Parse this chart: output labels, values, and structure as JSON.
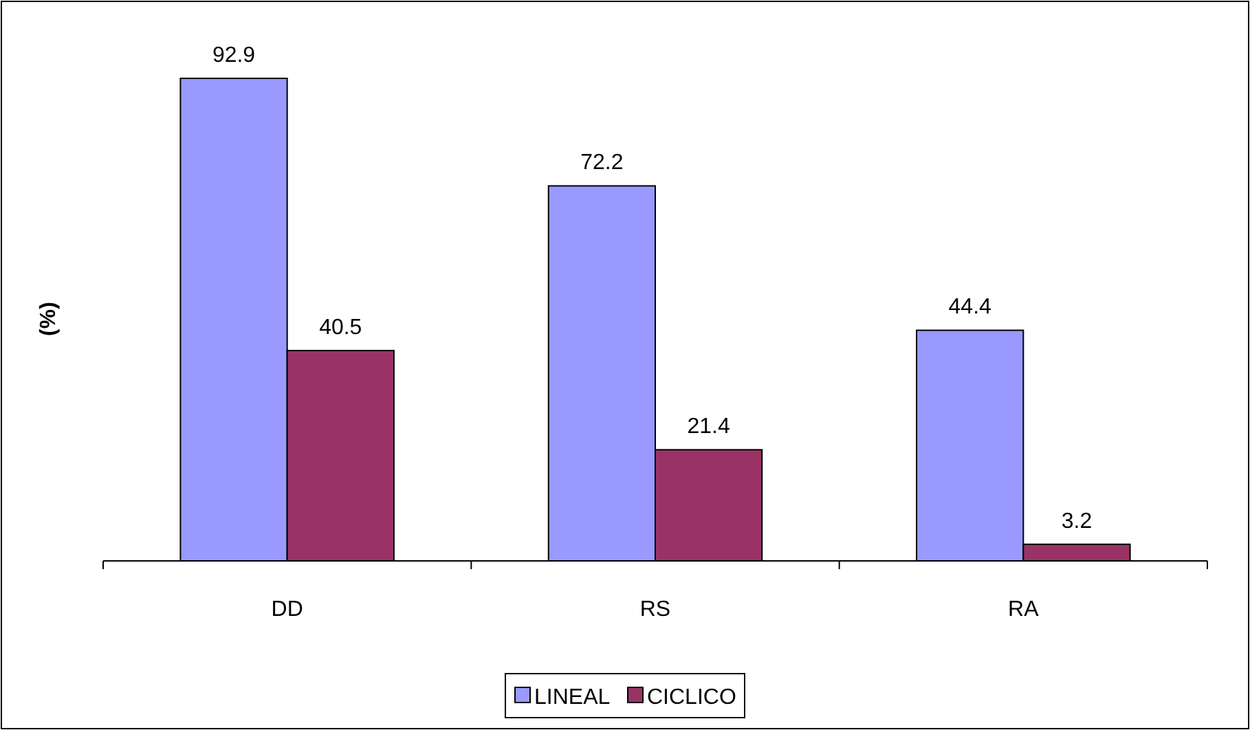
{
  "chart_data": {
    "type": "bar",
    "ylabel": "(%)",
    "categories": [
      "DD",
      "RS",
      "RA"
    ],
    "series": [
      {
        "name": "LINEAL",
        "color": "#9999ff",
        "values": [
          92.9,
          72.2,
          44.4
        ]
      },
      {
        "name": "CICLICO",
        "color": "#993366",
        "values": [
          40.5,
          21.4,
          3.2
        ]
      }
    ],
    "data_labels": true,
    "legend": "bottom"
  }
}
